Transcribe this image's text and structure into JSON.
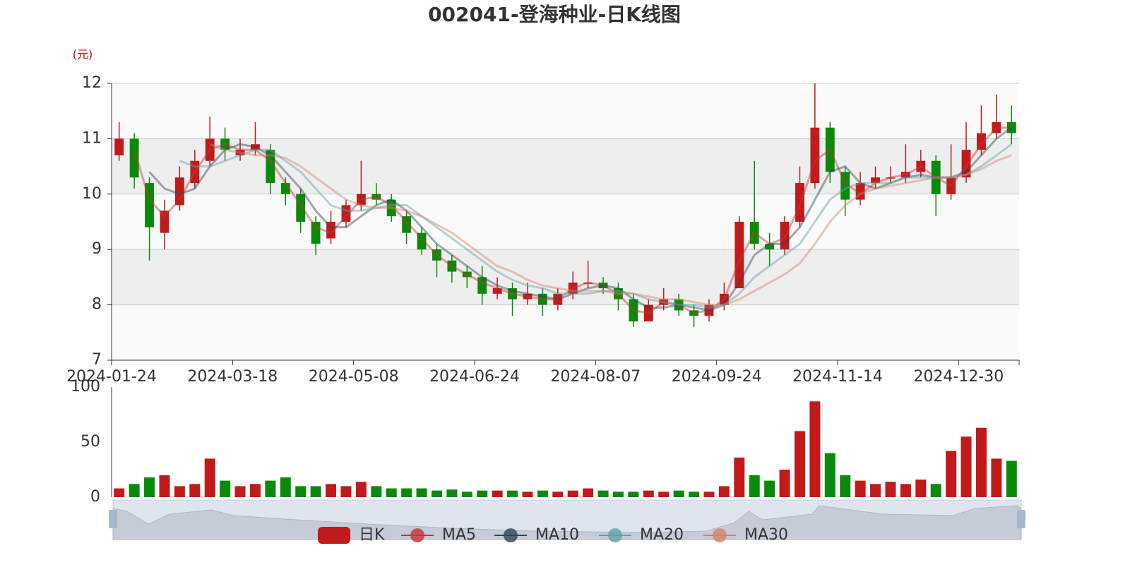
{
  "chart_data": {
    "type": "candlestick",
    "title": "002041-登海种业-日K线图",
    "y_label": "(元)",
    "candle_name": "日K",
    "up_color": "#c21a1a",
    "down_color": "#0a8a0a",
    "categories": [
      "2024-01-24",
      null,
      null,
      null,
      null,
      null,
      null,
      null,
      "2024-03-18",
      null,
      null,
      null,
      null,
      null,
      null,
      null,
      "2024-05-08",
      null,
      null,
      null,
      null,
      null,
      null,
      null,
      "2024-06-24",
      null,
      null,
      null,
      null,
      null,
      null,
      null,
      "2024-08-07",
      null,
      null,
      null,
      null,
      null,
      null,
      null,
      "2024-09-24",
      null,
      null,
      null,
      null,
      null,
      null,
      null,
      "2024-11-14",
      null,
      null,
      null,
      null,
      null,
      null,
      null,
      "2024-12-30",
      null,
      null,
      null
    ],
    "open": [
      10.7,
      11.0,
      10.2,
      9.3,
      9.8,
      10.2,
      10.6,
      11.0,
      10.7,
      10.8,
      10.8,
      10.2,
      10.0,
      9.5,
      9.2,
      9.5,
      9.8,
      10.0,
      9.9,
      9.6,
      9.3,
      9.0,
      8.8,
      8.6,
      8.5,
      8.2,
      8.3,
      8.1,
      8.2,
      8.0,
      8.2,
      8.4,
      8.4,
      8.3,
      8.1,
      7.7,
      8.0,
      8.1,
      7.9,
      7.8,
      8.0,
      8.3,
      9.5,
      9.1,
      9.0,
      9.5,
      10.2,
      11.2,
      10.4,
      9.9,
      10.2,
      10.3,
      10.3,
      10.4,
      10.6,
      10.0,
      10.3,
      10.8,
      11.1,
      11.3
    ],
    "close": [
      11.0,
      10.3,
      9.4,
      9.7,
      10.3,
      10.6,
      11.0,
      10.8,
      10.8,
      10.9,
      10.2,
      10.0,
      9.5,
      9.1,
      9.5,
      9.8,
      10.0,
      9.9,
      9.6,
      9.3,
      9.0,
      8.8,
      8.6,
      8.5,
      8.2,
      8.3,
      8.1,
      8.2,
      8.0,
      8.2,
      8.4,
      8.4,
      8.3,
      8.1,
      7.7,
      8.0,
      8.1,
      7.9,
      7.8,
      8.0,
      8.2,
      9.5,
      9.1,
      9.0,
      9.5,
      10.2,
      11.2,
      10.4,
      9.9,
      10.2,
      10.3,
      10.3,
      10.4,
      10.6,
      10.0,
      10.3,
      10.8,
      11.1,
      11.3,
      11.1
    ],
    "high": [
      11.3,
      11.1,
      10.3,
      9.9,
      10.5,
      10.8,
      11.4,
      11.2,
      11.0,
      11.3,
      10.9,
      10.3,
      10.1,
      9.6,
      9.7,
      9.9,
      10.6,
      10.2,
      10.0,
      9.7,
      9.4,
      9.1,
      8.9,
      8.7,
      8.7,
      8.5,
      8.4,
      8.4,
      8.3,
      8.3,
      8.6,
      8.8,
      8.5,
      8.4,
      8.2,
      8.1,
      8.3,
      8.2,
      8.0,
      8.1,
      8.4,
      9.6,
      10.6,
      9.3,
      9.6,
      10.5,
      12.0,
      11.3,
      10.5,
      10.4,
      10.5,
      10.5,
      10.9,
      10.8,
      10.7,
      10.9,
      11.3,
      11.6,
      11.8,
      11.6
    ],
    "low": [
      10.6,
      10.1,
      8.8,
      9.0,
      9.7,
      10.1,
      10.5,
      10.6,
      10.6,
      10.7,
      10.0,
      9.8,
      9.3,
      8.9,
      9.1,
      9.4,
      9.7,
      9.8,
      9.5,
      9.1,
      8.9,
      8.5,
      8.4,
      8.3,
      8.0,
      8.1,
      7.8,
      8.0,
      7.8,
      7.9,
      8.1,
      8.3,
      8.2,
      7.9,
      7.6,
      7.7,
      7.9,
      7.8,
      7.6,
      7.7,
      7.9,
      8.3,
      9.0,
      8.7,
      8.9,
      9.4,
      10.1,
      10.2,
      9.6,
      9.8,
      10.1,
      10.2,
      10.2,
      10.3,
      9.6,
      9.9,
      10.2,
      10.7,
      11.0,
      10.9
    ],
    "ylim": [
      7,
      12
    ],
    "yticks": [
      7,
      8,
      9,
      10,
      11,
      12
    ],
    "series": [
      {
        "name": "MA5",
        "color": "#c23531",
        "values": [
          null,
          10.8,
          9.9,
          9.6,
          9.9,
          10.4,
          10.8,
          10.9,
          10.8,
          10.8,
          10.6,
          10.2,
          9.8,
          9.4,
          9.3,
          9.6,
          9.9,
          9.95,
          9.8,
          9.5,
          9.2,
          8.9,
          8.7,
          8.55,
          8.4,
          8.3,
          8.2,
          8.15,
          8.1,
          8.1,
          8.3,
          8.4,
          8.35,
          8.2,
          7.9,
          7.85,
          8.05,
          8.0,
          7.85,
          7.9,
          8.1,
          8.8,
          9.3,
          9.1,
          9.2,
          9.8,
          10.6,
          10.8,
          10.2,
          10.0,
          10.2,
          10.3,
          10.35,
          10.5,
          10.3,
          10.15,
          10.5,
          10.9,
          11.2,
          11.2
        ]
      },
      {
        "name": "MA10",
        "color": "#2f4554",
        "values": [
          null,
          null,
          10.4,
          10.1,
          10.0,
          10.1,
          10.5,
          10.8,
          10.9,
          10.85,
          10.7,
          10.4,
          10.1,
          9.7,
          9.4,
          9.4,
          9.6,
          9.8,
          9.9,
          9.7,
          9.4,
          9.1,
          8.9,
          8.7,
          8.5,
          8.35,
          8.25,
          8.2,
          8.15,
          8.1,
          8.2,
          8.3,
          8.35,
          8.3,
          8.1,
          7.95,
          7.95,
          8.0,
          7.95,
          7.9,
          8.0,
          8.4,
          8.9,
          9.1,
          9.1,
          9.4,
          9.9,
          10.4,
          10.5,
          10.2,
          10.1,
          10.2,
          10.3,
          10.35,
          10.3,
          10.3,
          10.4,
          10.7,
          11.0,
          11.2
        ]
      },
      {
        "name": "MA20",
        "color": "#61a0a8",
        "values": [
          null,
          null,
          null,
          null,
          10.6,
          10.5,
          10.5,
          10.6,
          10.7,
          10.8,
          10.8,
          10.6,
          10.4,
          10.1,
          9.8,
          9.7,
          9.7,
          9.75,
          9.8,
          9.8,
          9.6,
          9.4,
          9.2,
          9.0,
          8.8,
          8.6,
          8.45,
          8.35,
          8.3,
          8.2,
          8.2,
          8.2,
          8.25,
          8.25,
          8.2,
          8.1,
          8.05,
          8.0,
          8.0,
          7.95,
          8.0,
          8.2,
          8.5,
          8.7,
          8.9,
          9.1,
          9.5,
          9.9,
          10.1,
          10.2,
          10.2,
          10.2,
          10.3,
          10.3,
          10.3,
          10.3,
          10.35,
          10.5,
          10.7,
          10.9
        ]
      },
      {
        "name": "MA30",
        "color": "#d48265",
        "values": [
          null,
          null,
          null,
          null,
          null,
          null,
          10.9,
          10.8,
          10.75,
          10.7,
          10.7,
          10.65,
          10.5,
          10.3,
          10.1,
          9.9,
          9.8,
          9.75,
          9.75,
          9.7,
          9.6,
          9.45,
          9.3,
          9.1,
          8.9,
          8.7,
          8.6,
          8.45,
          8.35,
          8.3,
          8.25,
          8.25,
          8.25,
          8.2,
          8.2,
          8.15,
          8.1,
          8.1,
          8.05,
          8.0,
          8.0,
          8.1,
          8.25,
          8.4,
          8.55,
          8.75,
          9.1,
          9.5,
          9.8,
          10.0,
          10.1,
          10.15,
          10.2,
          10.25,
          10.3,
          10.3,
          10.35,
          10.45,
          10.6,
          10.7
        ]
      }
    ],
    "volume": {
      "values": [
        8,
        12,
        18,
        20,
        10,
        12,
        35,
        15,
        10,
        12,
        15,
        18,
        10,
        10,
        12,
        10,
        14,
        10,
        8,
        8,
        8,
        6,
        7,
        5,
        6,
        6,
        6,
        5,
        6,
        5,
        6,
        8,
        6,
        5,
        5,
        6,
        5,
        6,
        5,
        5,
        10,
        36,
        20,
        15,
        25,
        60,
        87,
        40,
        20,
        15,
        12,
        14,
        12,
        16,
        12,
        42,
        55,
        63,
        35,
        33
      ],
      "ylim": [
        0,
        100
      ],
      "yticks": [
        0,
        50,
        100
      ]
    }
  }
}
